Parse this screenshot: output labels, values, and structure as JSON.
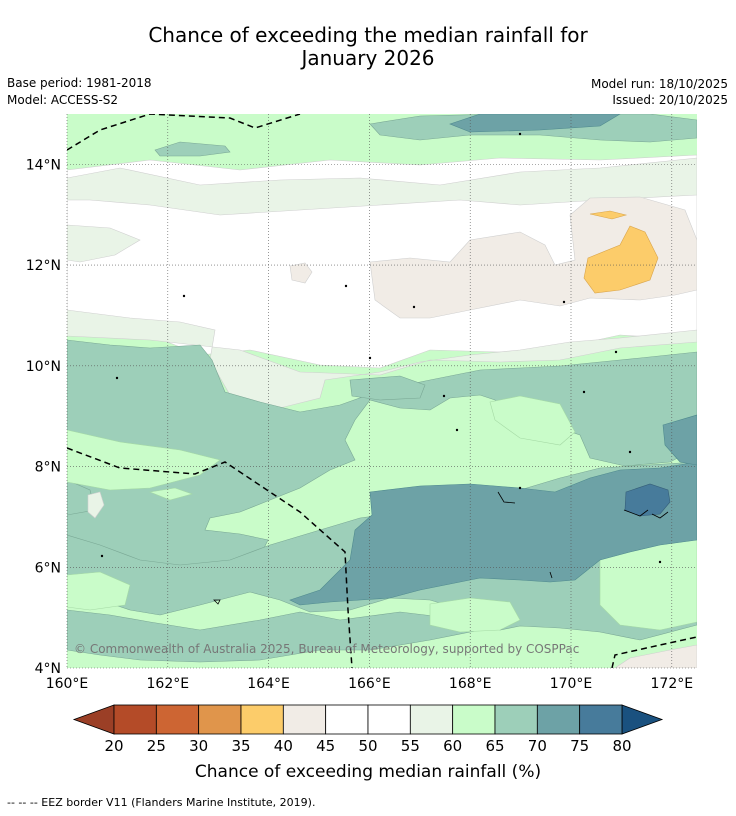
{
  "header": {
    "title_line1": "Chance of exceeding the median rainfall for",
    "title_line2": "January 2026",
    "base_period": "Base period: 1981-2018",
    "model": "Model: ACCESS-S2",
    "model_run": "Model run: 18/10/2025",
    "issued": "Issued: 20/10/2025"
  },
  "map": {
    "lon_range": [
      160,
      172.5
    ],
    "lat_range": [
      4,
      15
    ],
    "x_ticks": [
      {
        "value": 160,
        "label": "160°E"
      },
      {
        "value": 162,
        "label": "162°E"
      },
      {
        "value": 164,
        "label": "164°E"
      },
      {
        "value": 166,
        "label": "166°E"
      },
      {
        "value": 168,
        "label": "168°E"
      },
      {
        "value": 170,
        "label": "170°E"
      },
      {
        "value": 172,
        "label": "172°E"
      }
    ],
    "y_ticks": [
      {
        "value": 4,
        "label": "4°N"
      },
      {
        "value": 6,
        "label": "6°N"
      },
      {
        "value": 8,
        "label": "8°N"
      },
      {
        "value": 10,
        "label": "10°N"
      },
      {
        "value": 12,
        "label": "12°N"
      },
      {
        "value": 14,
        "label": "14°N"
      }
    ],
    "copyright": "© Commonwealth of Australia 2025, Bureau of Meteorology, supported by COSPPac"
  },
  "colorbar": {
    "title": "Chance of exceeding median rainfall (%)",
    "tick_labels": [
      "20",
      "25",
      "30",
      "35",
      "40",
      "45",
      "50",
      "55",
      "60",
      "65",
      "70",
      "75",
      "80"
    ],
    "colors": [
      "#b44b28",
      "#cd6533",
      "#e0954b",
      "#fccc6a",
      "#f1ece6",
      "#ffffff",
      "#ffffff",
      "#e9f4e7",
      "#c9fcc9",
      "#9dcfb9",
      "#6da2a6",
      "#477b9b"
    ],
    "below_color": "#9b3f26",
    "above_color": "#1a517f"
  },
  "footer": {
    "legend": "--  --  -- EEZ border V11 (Flanders Marine Institute, 2019)."
  }
}
